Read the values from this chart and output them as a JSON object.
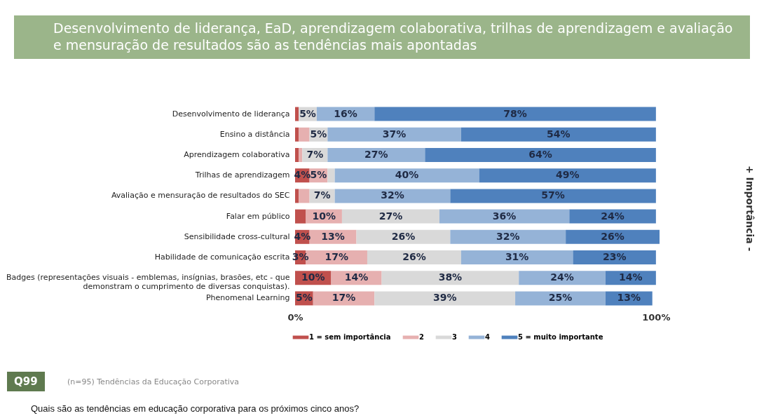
{
  "chart_data": {
    "type": "bar",
    "orientation": "horizontal",
    "stacked": true,
    "title": "Desenvolvimento de liderança, EaD, aprendizagem colaborativa, trilhas de aprendizagem e avaliação e mensuração de resultados são as tendências mais apontadas",
    "categories": [
      "Desenvolvimento de liderança",
      "Ensino a distância",
      "Aprendizagem colaborativa",
      "Trilhas de aprendizagem",
      "Avaliação e mensuração de resultados do SEC",
      "Falar em público",
      "Sensibilidade cross-cultural",
      "Habilidade de comunicação escrita",
      "Badges (representações visuais - emblemas, insígnias, brasões, etc - que demonstram o cumprimento de diversas conquistas).",
      "Phenomenal Learning"
    ],
    "series": [
      {
        "name": "1 = sem importância",
        "color": "#c0504d",
        "values": [
          1,
          1,
          1,
          4,
          1,
          3,
          4,
          3,
          10,
          5
        ],
        "value_labels": [
          null,
          null,
          null,
          "4%",
          null,
          null,
          "4%",
          "3%",
          "10%",
          "5%"
        ]
      },
      {
        "name": "2",
        "color": "#e6b0b0",
        "values": [
          null,
          3,
          1,
          5,
          3,
          10,
          13,
          17,
          14,
          17
        ],
        "value_labels": [
          null,
          null,
          null,
          "5%",
          null,
          "10%",
          "13%",
          "17%",
          "14%",
          "17%"
        ]
      },
      {
        "name": "3",
        "color": "#d9d9d9",
        "values": [
          5,
          5,
          7,
          2,
          7,
          27,
          26,
          26,
          38,
          39
        ],
        "value_labels": [
          "5%",
          "5%",
          "7%",
          null,
          "7%",
          "27%",
          "26%",
          "26%",
          "38%",
          "39%"
        ]
      },
      {
        "name": "4",
        "color": "#95b3d7",
        "values": [
          16,
          37,
          27,
          40,
          32,
          36,
          32,
          31,
          24,
          25
        ],
        "value_labels": [
          "16%",
          "37%",
          "27%",
          "40%",
          "32%",
          "36%",
          "32%",
          "31%",
          "24%",
          "25%"
        ]
      },
      {
        "name": "5 = muito importante",
        "color": "#4f81bd",
        "values": [
          78,
          54,
          64,
          49,
          57,
          24,
          26,
          23,
          14,
          13
        ],
        "value_labels": [
          "78%",
          "54%",
          "64%",
          "49%",
          "57%",
          "24%",
          "26%",
          "23%",
          "14%",
          "13%"
        ]
      }
    ],
    "xlim": [
      0,
      101
    ],
    "xticks": [
      {
        "value": 0,
        "label": "0%"
      },
      {
        "value": 100,
        "label": "100%"
      }
    ],
    "grid": false,
    "legend": "bottom",
    "annotations": [
      "+ Importância -",
      "Q99",
      "(n=95) Tendências da Educação Corporativa",
      "Quais são as tendências em educação corporativa para os próximos cinco anos?"
    ]
  }
}
